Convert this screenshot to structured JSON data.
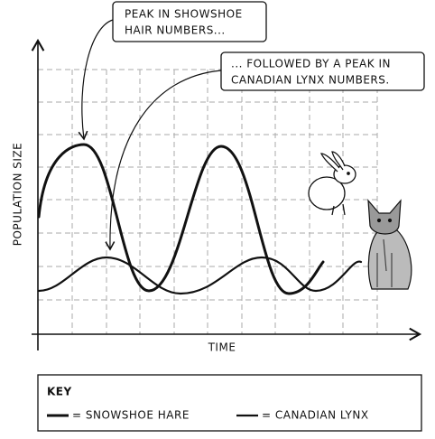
{
  "callouts": [
    {
      "lines": [
        "PEAK IN SHOWSHOE",
        "HAIR NUMBERS..."
      ]
    },
    {
      "lines": [
        "... FOLLOWED BY A PEAK IN",
        "CANADIAN LYNX NUMBERS."
      ]
    }
  ],
  "axes": {
    "y_label": "POPULATION SIZE",
    "x_label": "TIME"
  },
  "key": {
    "title": "KEY",
    "items": [
      "= SNOWSHOE HARE",
      "= CANADIAN LYNX"
    ]
  }
}
